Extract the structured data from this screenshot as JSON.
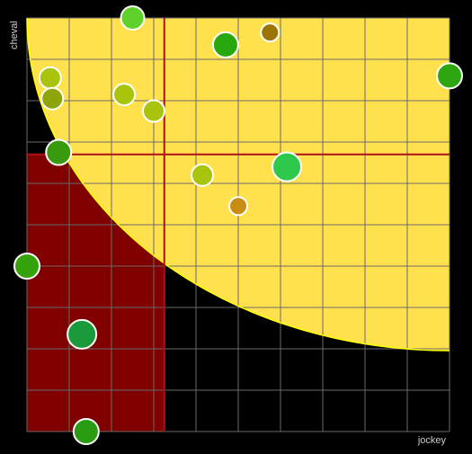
{
  "chart_data": {
    "type": "scatter",
    "title": "",
    "xlabel": "jockey",
    "ylabel": "cheval",
    "xlim": [
      0,
      10
    ],
    "ylim": [
      0,
      10
    ],
    "grid": true,
    "grid_step": 1,
    "thresholds": {
      "x": 3.25,
      "y": 6.7
    },
    "zone_colors": {
      "top_right": "#006400",
      "bottom_left": "#800000",
      "bottom_right": "#000000",
      "curve_band": "#FFE14D",
      "threshold_line": "#B0101A",
      "curve_line": "#FFFF00",
      "grid": "#6A6A6A",
      "background": "#000000"
    },
    "points": [
      {
        "x": 2.5,
        "y": 10.0,
        "size": 13,
        "color": "#5FD12A"
      },
      {
        "x": 4.7,
        "y": 9.35,
        "size": 14,
        "color": "#28A80E"
      },
      {
        "x": 5.75,
        "y": 9.65,
        "size": 10,
        "color": "#9C7405"
      },
      {
        "x": 10.0,
        "y": 8.6,
        "size": 14,
        "color": "#2DA611"
      },
      {
        "x": 0.55,
        "y": 8.55,
        "size": 12,
        "color": "#A8C40C"
      },
      {
        "x": 0.6,
        "y": 8.05,
        "size": 12,
        "color": "#8FA50E"
      },
      {
        "x": 2.3,
        "y": 8.15,
        "size": 12,
        "color": "#A8C40C"
      },
      {
        "x": 3.0,
        "y": 7.75,
        "size": 12,
        "color": "#A8C40C"
      },
      {
        "x": 0.75,
        "y": 6.75,
        "size": 14,
        "color": "#3A9A0E"
      },
      {
        "x": 4.15,
        "y": 6.2,
        "size": 12,
        "color": "#A8C40C"
      },
      {
        "x": 6.15,
        "y": 6.4,
        "size": 16,
        "color": "#2EC84C"
      },
      {
        "x": 5.0,
        "y": 5.45,
        "size": 10,
        "color": "#C88C12"
      },
      {
        "x": 0.0,
        "y": 4.0,
        "size": 14,
        "color": "#35A20C"
      },
      {
        "x": 1.3,
        "y": 2.35,
        "size": 16,
        "color": "#1B9A3C"
      },
      {
        "x": 1.4,
        "y": 0.0,
        "size": 14,
        "color": "#2A9C12"
      }
    ]
  }
}
